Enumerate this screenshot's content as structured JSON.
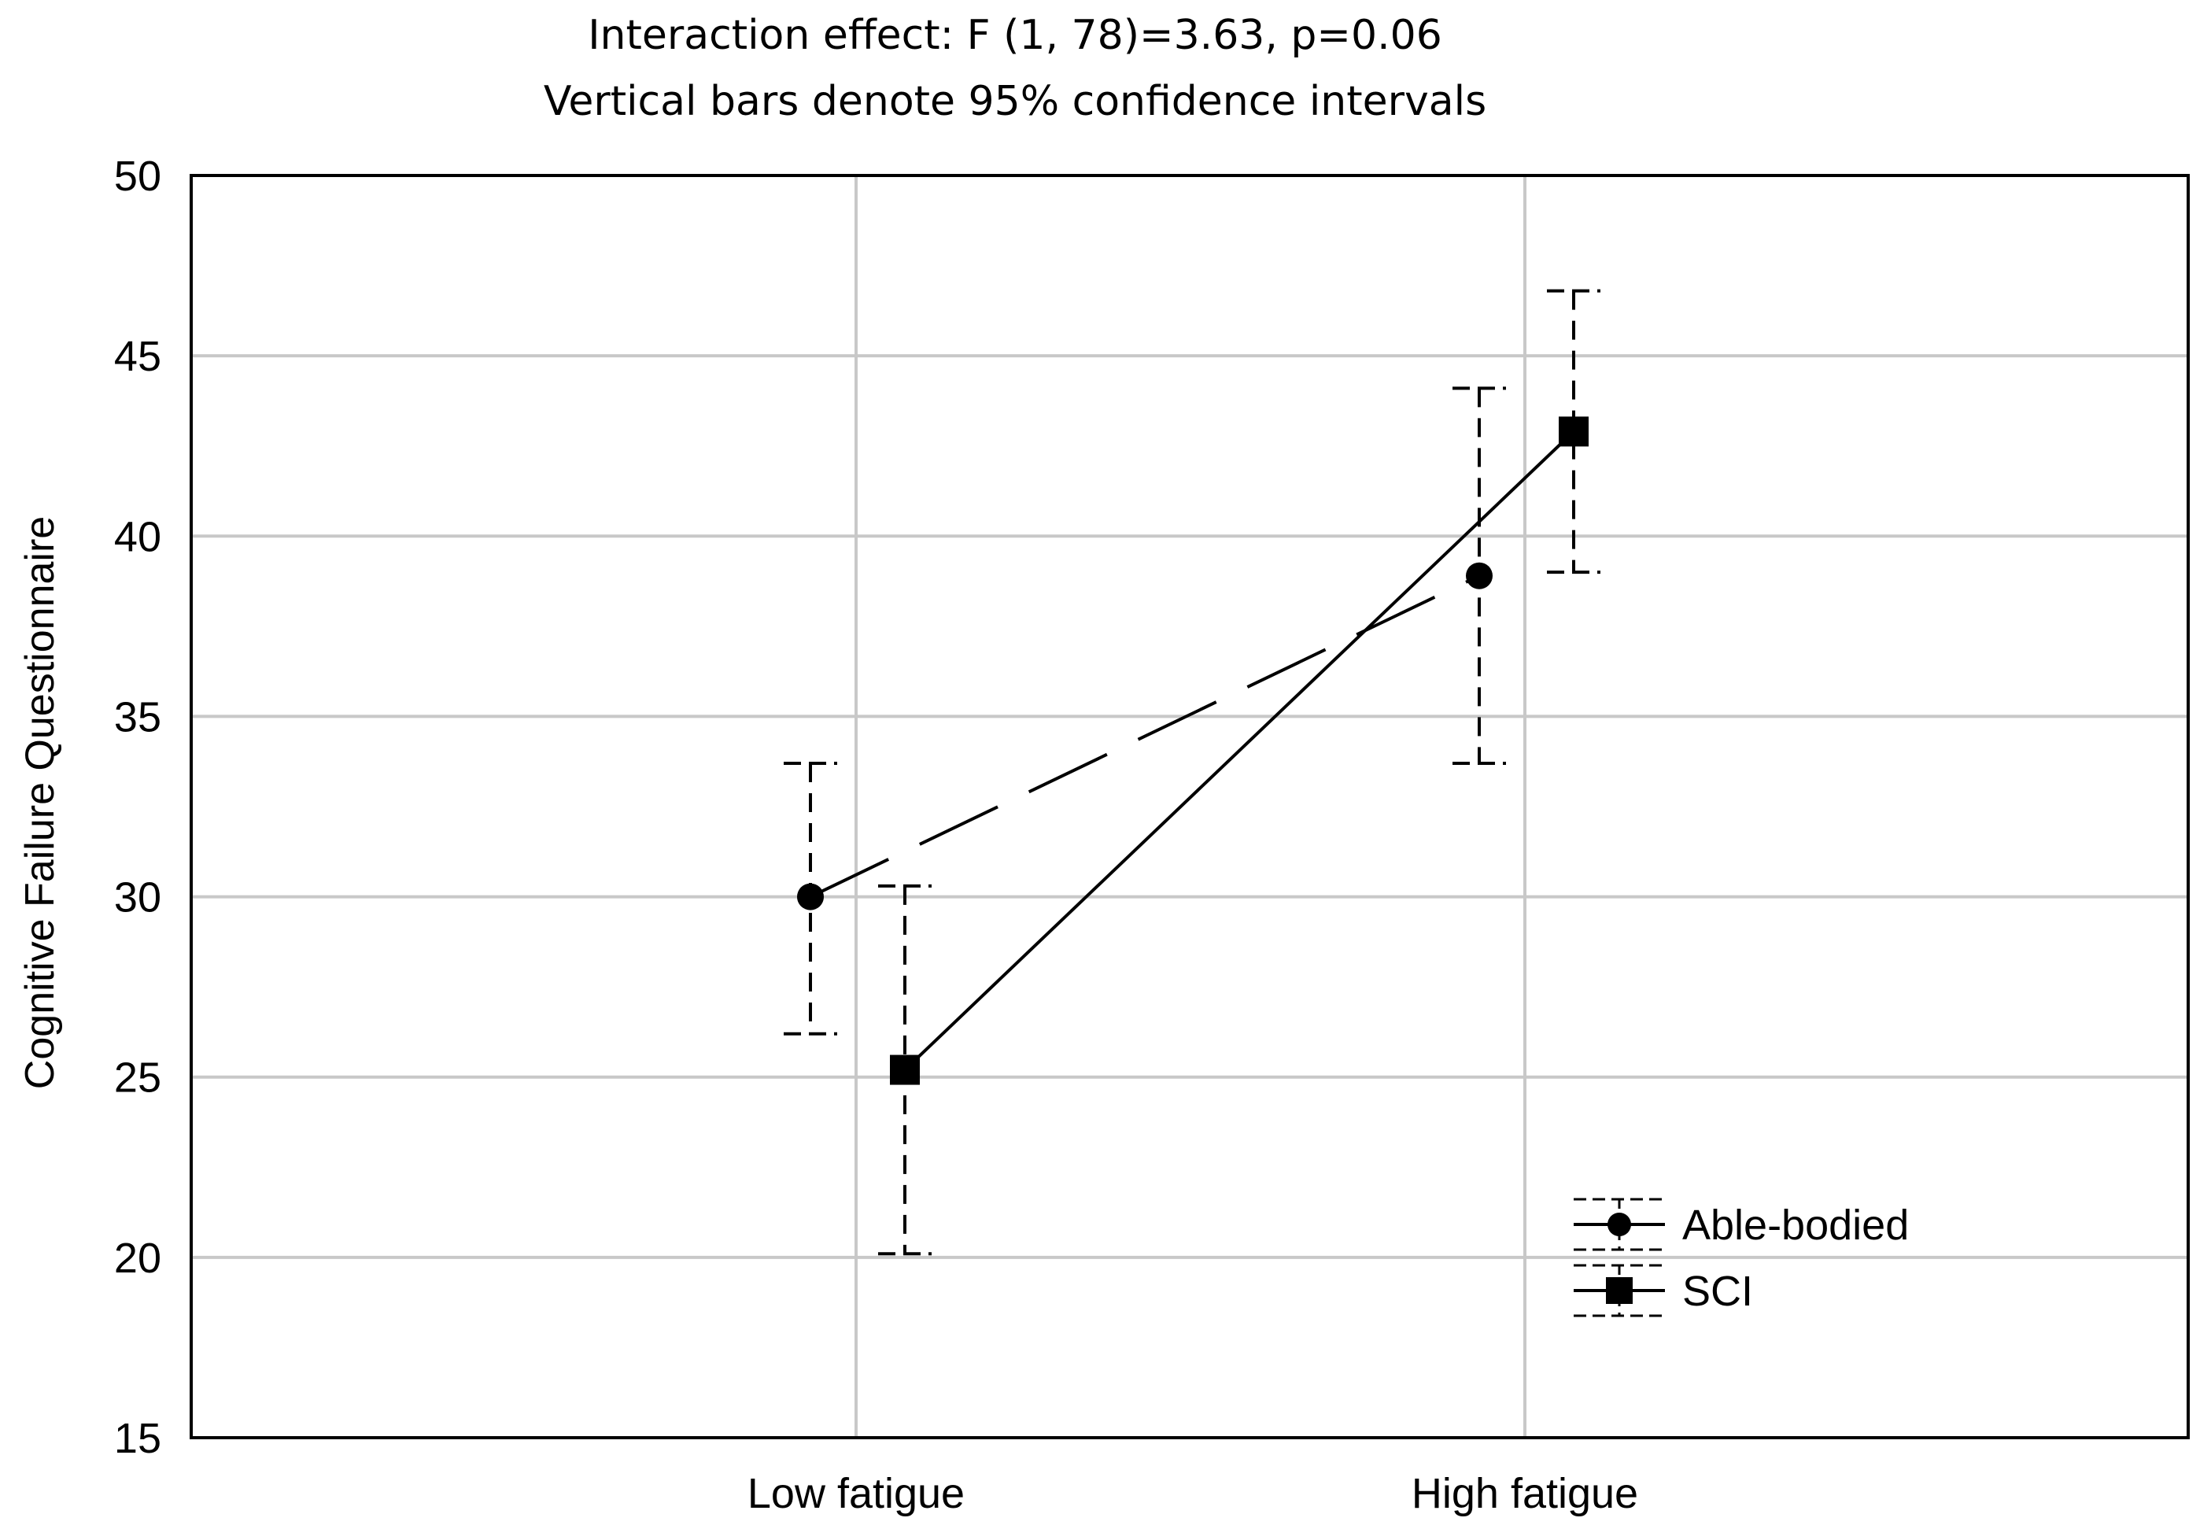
{
  "chart_data": {
    "type": "line",
    "title": "Interaction effect: F (1, 78)=3.63, p=0.06",
    "subtitle": "Vertical bars denote 95% confidence intervals",
    "xlabel": "",
    "ylabel": "Cognitive Failure Questionnaire",
    "categories": [
      "Low fatigue",
      "High fatigue"
    ],
    "ylim": [
      15,
      50
    ],
    "yticks": [
      15,
      20,
      25,
      30,
      35,
      40,
      45,
      50
    ],
    "grid": true,
    "legend_position": "bottom-right",
    "series": [
      {
        "name": "Able-bodied",
        "marker": "circle",
        "line_style": "dashed",
        "values": [
          30.0,
          38.9
        ],
        "ci_lower": [
          26.2,
          33.7
        ],
        "ci_upper": [
          33.7,
          44.1
        ]
      },
      {
        "name": "SCI",
        "marker": "square",
        "line_style": "solid",
        "values": [
          25.2,
          42.9
        ],
        "ci_lower": [
          20.1,
          39.0
        ],
        "ci_upper": [
          30.3,
          46.8
        ]
      }
    ]
  },
  "colors": {
    "line": "#000000",
    "grid": "#c8c8c8",
    "background": "#ffffff"
  }
}
